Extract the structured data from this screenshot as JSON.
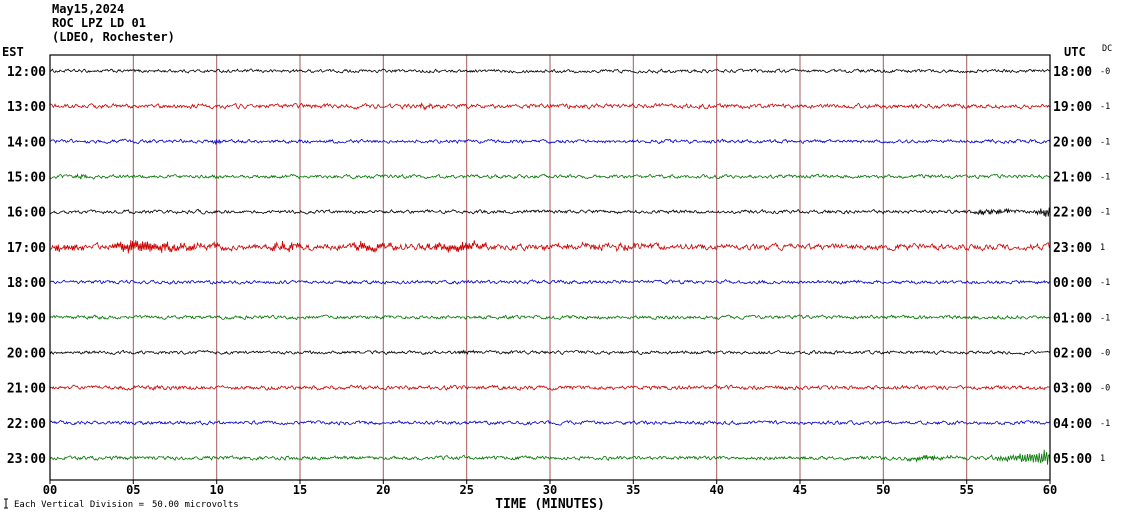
{
  "header": {
    "date": "May15,2024",
    "station": "ROC LPZ LD 01",
    "location": "(LDEO, Rochester)"
  },
  "axes": {
    "left_label": "EST",
    "right_label": "UTC",
    "dc_label": "DC",
    "x_label": "TIME (MINUTES)",
    "x_ticks": [
      "00",
      "05",
      "10",
      "15",
      "20",
      "25",
      "30",
      "35",
      "40",
      "45",
      "50",
      "55",
      "60"
    ]
  },
  "footer": {
    "note": "Each Vertical Division =",
    "value": "50.00 microvolts"
  },
  "chart_data": {
    "type": "line",
    "title": "ROC LPZ LD 01",
    "subtitle": "(LDEO, Rochester)",
    "date": "May15,2024",
    "xlabel": "TIME (MINUTES)",
    "x_range_minutes": [
      0,
      60
    ],
    "minutes_per_row": 60,
    "vertical_division_microvolts": 50.0,
    "grid_interval_minutes": 5,
    "colors": {
      "black": "#000000",
      "red": "#cc0000",
      "blue": "#0000cc",
      "green": "#007700",
      "grid": "#a05a5a",
      "frame": "#000000"
    },
    "rows": [
      {
        "est": "12:00",
        "utc": "18:00",
        "dc": "-0",
        "color": "black",
        "noise": 1.2,
        "events": []
      },
      {
        "est": "13:00",
        "utc": "19:00",
        "dc": "-1",
        "color": "red",
        "noise": 1.6,
        "events": [
          {
            "start": 22,
            "end": 24,
            "amp": 2,
            "freq": 10,
            "shape": "burst"
          }
        ]
      },
      {
        "est": "14:00",
        "utc": "20:00",
        "dc": "-1",
        "color": "blue",
        "noise": 1.3,
        "events": [
          {
            "start": 9.5,
            "end": 11,
            "amp": 2.5,
            "freq": 12,
            "shape": "burst"
          }
        ]
      },
      {
        "est": "15:00",
        "utc": "21:00",
        "dc": "-1",
        "color": "green",
        "noise": 1.3,
        "events": [
          {
            "start": 1.5,
            "end": 3,
            "amp": 2.2,
            "freq": 12,
            "shape": "burst"
          }
        ]
      },
      {
        "est": "16:00",
        "utc": "22:00",
        "dc": "-1",
        "color": "black",
        "noise": 1.3,
        "events": [
          {
            "start": 55,
            "end": 58,
            "amp": 3,
            "freq": 9,
            "shape": "hump"
          },
          {
            "start": 58,
            "end": 60,
            "amp": 6,
            "freq": 8,
            "shape": "grow"
          }
        ]
      },
      {
        "est": "17:00",
        "utc": "23:00",
        "dc": "1",
        "color": "red",
        "noise": 2.2,
        "events": [
          {
            "start": 0,
            "end": 3,
            "amp": 4,
            "freq": 11,
            "shape": "burst"
          },
          {
            "start": 3.5,
            "end": 12,
            "amp": 5,
            "freq": 10,
            "shape": "burst"
          },
          {
            "start": 13,
            "end": 17,
            "amp": 4.5,
            "freq": 11,
            "shape": "burst"
          },
          {
            "start": 18,
            "end": 22,
            "amp": 4,
            "freq": 10,
            "shape": "burst"
          },
          {
            "start": 22,
            "end": 27,
            "amp": 3.5,
            "freq": 10,
            "shape": "hump"
          },
          {
            "start": 27,
            "end": 40,
            "amp": 1.5,
            "freq": 9,
            "shape": "hump"
          }
        ]
      },
      {
        "est": "18:00",
        "utc": "00:00",
        "dc": "-1",
        "color": "blue",
        "noise": 1.3,
        "events": []
      },
      {
        "est": "19:00",
        "utc": "01:00",
        "dc": "-1",
        "color": "green",
        "noise": 1.3,
        "events": []
      },
      {
        "est": "20:00",
        "utc": "02:00",
        "dc": "-0",
        "color": "black",
        "noise": 1.2,
        "events": [
          {
            "start": 24.5,
            "end": 26,
            "amp": 1.8,
            "freq": 10,
            "shape": "burst"
          }
        ]
      },
      {
        "est": "21:00",
        "utc": "03:00",
        "dc": "-0",
        "color": "red",
        "noise": 1.5,
        "events": []
      },
      {
        "est": "22:00",
        "utc": "04:00",
        "dc": "-1",
        "color": "blue",
        "noise": 1.3,
        "events": []
      },
      {
        "est": "23:00",
        "utc": "05:00",
        "dc": "1",
        "color": "green",
        "noise": 1.4,
        "events": [
          {
            "start": 51,
            "end": 54.5,
            "amp": 2.5,
            "freq": 9,
            "shape": "hump"
          },
          {
            "start": 54.5,
            "end": 60,
            "amp": 10,
            "freq": 7,
            "shape": "grow"
          }
        ]
      }
    ]
  }
}
